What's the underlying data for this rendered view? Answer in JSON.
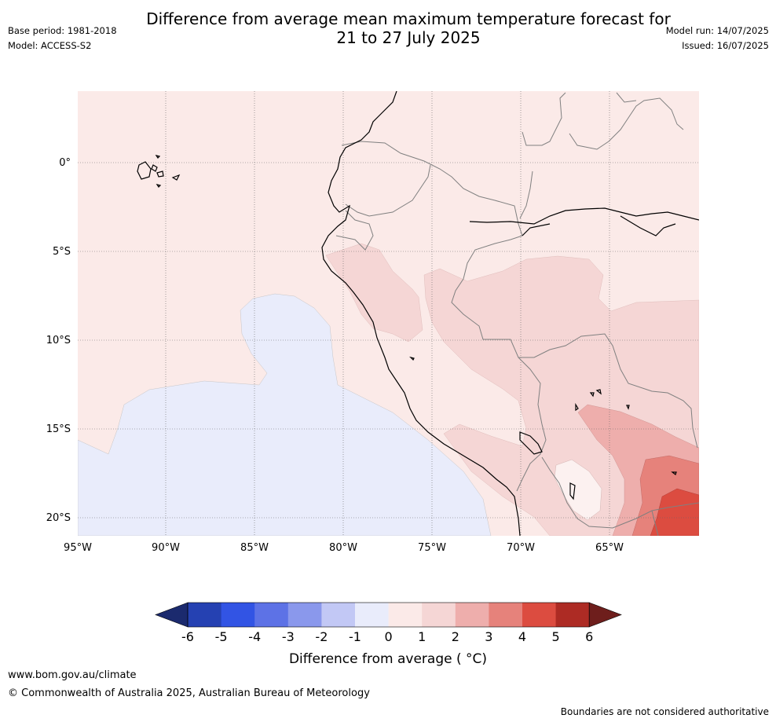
{
  "title": {
    "line1": "Difference from average mean maximum temperature forecast for",
    "line2": "21 to 27 July 2025"
  },
  "meta_left": {
    "base_period": "Base period: 1981-2018",
    "model": "Model: ACCESS-S2"
  },
  "meta_right": {
    "model_run": "Model run: 14/07/2025",
    "issued": "Issued: 16/07/2025"
  },
  "map": {
    "lat_labels": [
      "0°",
      "5°S",
      "10°S",
      "15°S",
      "20°S"
    ],
    "lon_labels": [
      "95°W",
      "90°W",
      "85°W",
      "80°W",
      "75°W",
      "70°W",
      "65°W"
    ],
    "background_anomaly_class": "0 to 1",
    "regions": [
      {
        "name": "cool-ocean-anomaly",
        "class": "-1 to 0",
        "color": "#e9ecfb"
      },
      {
        "name": "northern-peru-warm",
        "class": "1 to 2",
        "color": "#f5d6d5"
      },
      {
        "name": "amazon-andes-warm",
        "class": "1 to 2",
        "color": "#f5d6d5"
      },
      {
        "name": "bolivia-warm",
        "class": "2 to 3",
        "color": "#eeaeac"
      },
      {
        "name": "south-bolivia-hot",
        "class": "3 to 4",
        "color": "#e6827b"
      },
      {
        "name": "paraguay-hot",
        "class": "4 to 5",
        "color": "#dc4c40"
      }
    ]
  },
  "colorbar": {
    "ticks": [
      "-6",
      "-5",
      "-4",
      "-3",
      "-2",
      "-1",
      "0",
      "1",
      "2",
      "3",
      "4",
      "5",
      "6"
    ],
    "colors": [
      "#1b2a6e",
      "#2541b2",
      "#3254e4",
      "#5d72e6",
      "#8a98ec",
      "#c2c8f5",
      "#e9ecfb",
      "#fbeae8",
      "#f5d6d5",
      "#eeaeac",
      "#e6827b",
      "#dc4c40",
      "#ad2b24",
      "#6e1e1c"
    ],
    "label": "Difference from average ( °C)"
  },
  "footer": {
    "url": "www.bom.gov.au/climate",
    "copyright": "© Commonwealth of Australia 2025, Australian Bureau of Meteorology",
    "disclaimer": "Boundaries are not considered authoritative"
  }
}
